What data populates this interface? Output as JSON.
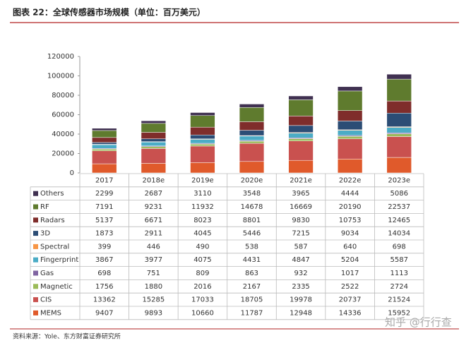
{
  "chart_data": {
    "type": "bar",
    "stacked": true,
    "title": "图表 22：全球传感器市场规模（单位：百万美元）",
    "source": "资料来源：Yole、东方财富证券研究所",
    "watermark": "知乎 @行行查",
    "categories": [
      "2017",
      "2018e",
      "2019e",
      "2020e",
      "2021e",
      "2022e",
      "2023e"
    ],
    "series": [
      {
        "name": "MEMS",
        "color": "#e05a2b",
        "values": [
          9407,
          9893,
          10660,
          11787,
          12948,
          14336,
          15952
        ]
      },
      {
        "name": "CIS",
        "color": "#c9514f",
        "values": [
          13362,
          15285,
          17033,
          18705,
          19978,
          20737,
          21524
        ]
      },
      {
        "name": "Magnetic",
        "color": "#9bbb59",
        "values": [
          1756,
          1880,
          2016,
          2167,
          2335,
          2522,
          2724
        ]
      },
      {
        "name": "Gas",
        "color": "#8064a2",
        "values": [
          698,
          751,
          809,
          863,
          932,
          1017,
          1113
        ]
      },
      {
        "name": "Fingerprint",
        "color": "#4bacc6",
        "values": [
          3867,
          3977,
          4075,
          4431,
          4847,
          5204,
          5587
        ]
      },
      {
        "name": "Spectral",
        "color": "#f79646",
        "values": [
          399,
          446,
          490,
          538,
          587,
          640,
          698
        ]
      },
      {
        "name": "3D",
        "color": "#2c4d75",
        "values": [
          1873,
          2911,
          4045,
          5446,
          7215,
          9034,
          14034
        ]
      },
      {
        "name": "Radars",
        "color": "#7f2d2b",
        "values": [
          5137,
          6671,
          8023,
          8801,
          9830,
          10753,
          12465
        ]
      },
      {
        "name": "RF",
        "color": "#5f7b2e",
        "values": [
          7191,
          9231,
          11932,
          14678,
          16669,
          20190,
          22537
        ]
      },
      {
        "name": "Others",
        "color": "#403151",
        "values": [
          2299,
          2687,
          3110,
          3548,
          3965,
          4444,
          5086
        ]
      }
    ],
    "ylim": [
      0,
      120000
    ],
    "yticks": [
      0,
      20000,
      40000,
      60000,
      80000,
      100000,
      120000
    ],
    "grid": false
  }
}
